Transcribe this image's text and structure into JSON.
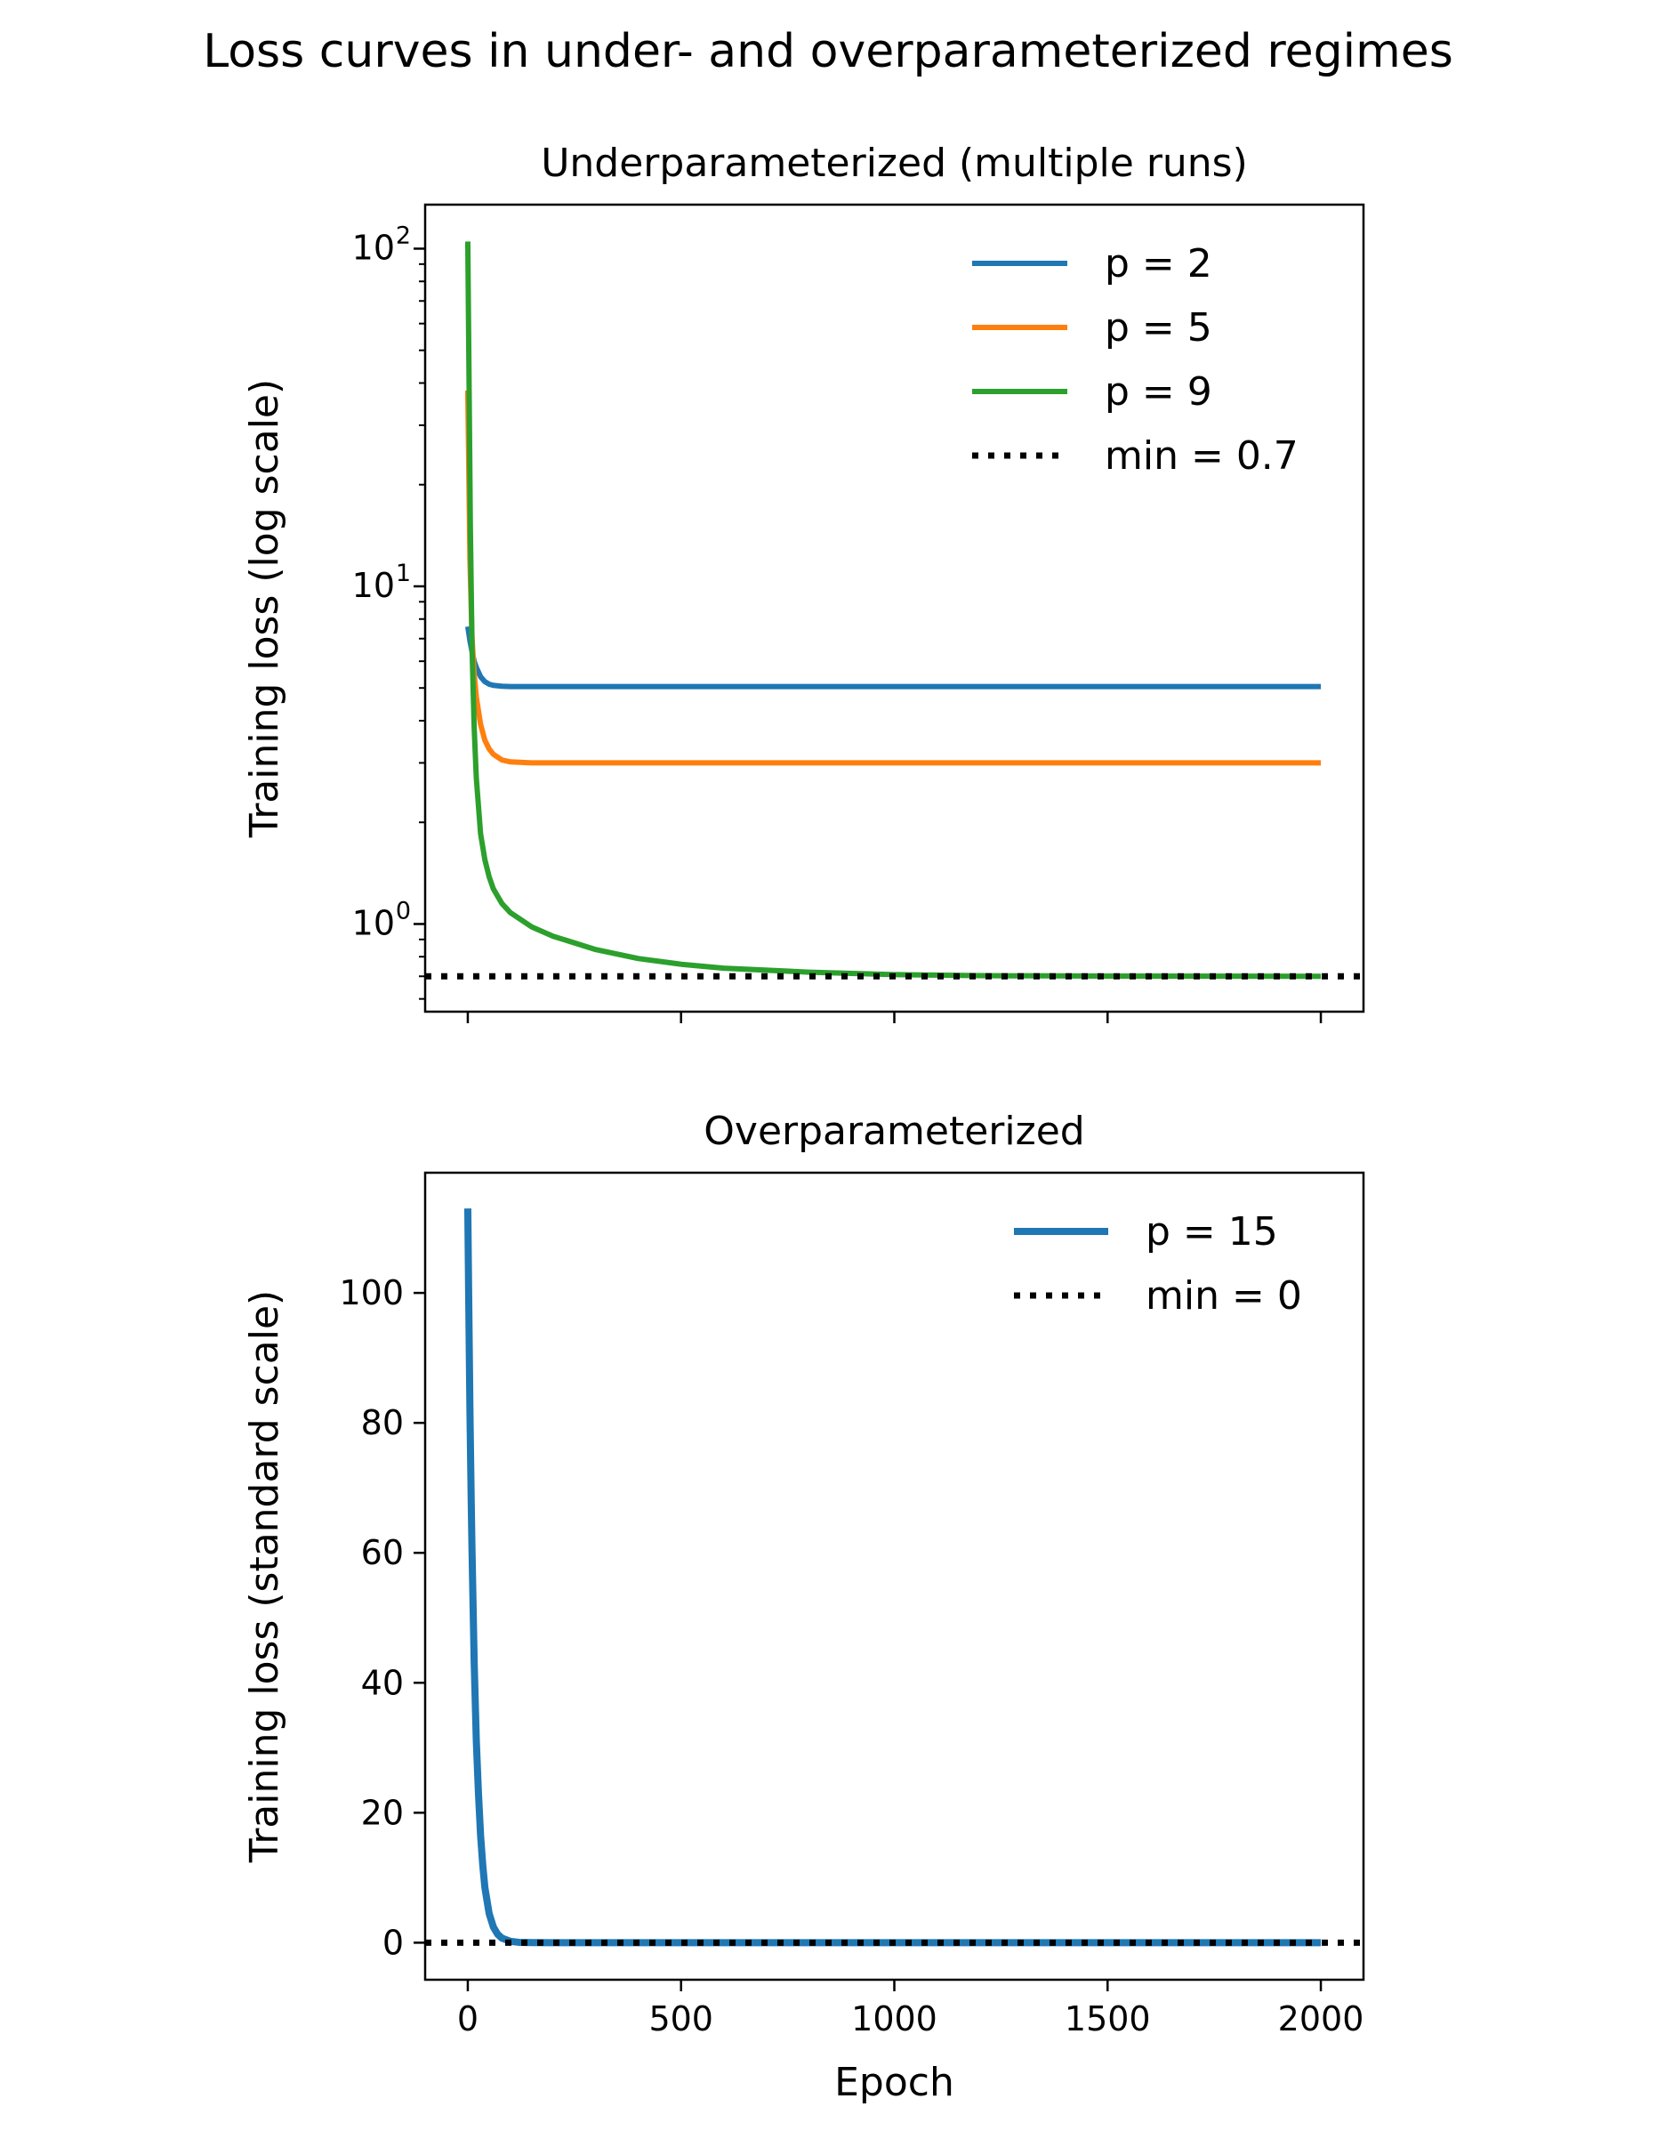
{
  "figure": {
    "suptitle": "Loss curves in under- and overparameterized regimes"
  },
  "colors": {
    "blue": "#1f77b4",
    "orange": "#ff7f0e",
    "green": "#2ca02c",
    "min_line": "#000000"
  },
  "chart_data": [
    {
      "type": "line",
      "title": "Underparameterized (multiple runs)",
      "xlabel": "",
      "ylabel": "Training loss (log scale)",
      "yscale": "log",
      "xlim": [
        -100,
        2100
      ],
      "ylim": [
        0.55,
        135
      ],
      "x_ticks": [
        0,
        500,
        1000,
        1500,
        2000
      ],
      "x_tick_labels_shown": false,
      "y_ticks": [
        {
          "value": 1,
          "base": "10",
          "exp": "0"
        },
        {
          "value": 10,
          "base": "10",
          "exp": "1"
        },
        {
          "value": 100,
          "base": "10",
          "exp": "2"
        }
      ],
      "legend_position": "top-right",
      "series": [
        {
          "name": "p = 2",
          "color": "blue",
          "x": [
            0,
            5,
            10,
            15,
            20,
            30,
            40,
            50,
            60,
            80,
            100,
            150,
            200,
            300,
            500,
            1000,
            1500,
            2000
          ],
          "y": [
            7.6,
            6.9,
            6.4,
            6.0,
            5.75,
            5.4,
            5.22,
            5.13,
            5.09,
            5.06,
            5.05,
            5.05,
            5.05,
            5.05,
            5.05,
            5.05,
            5.05,
            5.05
          ]
        },
        {
          "name": "p = 5",
          "color": "orange",
          "x": [
            0,
            5,
            10,
            15,
            20,
            30,
            40,
            50,
            60,
            80,
            100,
            150,
            200,
            300,
            500,
            1000,
            1500,
            2000
          ],
          "y": [
            38,
            12,
            7.0,
            5.5,
            4.7,
            3.9,
            3.5,
            3.3,
            3.18,
            3.06,
            3.02,
            3.0,
            3.0,
            3.0,
            3.0,
            3.0,
            3.0,
            3.0
          ]
        },
        {
          "name": "p = 9",
          "color": "green",
          "x": [
            0,
            3,
            6,
            10,
            15,
            20,
            30,
            40,
            50,
            60,
            80,
            100,
            150,
            200,
            300,
            400,
            500,
            600,
            800,
            1000,
            1200,
            1500,
            2000
          ],
          "y": [
            105,
            40,
            15,
            6.5,
            3.8,
            2.7,
            1.85,
            1.55,
            1.38,
            1.27,
            1.15,
            1.08,
            0.98,
            0.92,
            0.84,
            0.79,
            0.76,
            0.74,
            0.72,
            0.708,
            0.703,
            0.701,
            0.7
          ]
        }
      ],
      "reference_line": {
        "name": "min = 0.7",
        "y": 0.7,
        "style": "dotted",
        "color": "min_line"
      }
    },
    {
      "type": "line",
      "title": "Overparameterized",
      "xlabel": "Epoch",
      "ylabel": "Training loss (standard scale)",
      "yscale": "linear",
      "xlim": [
        -100,
        2100
      ],
      "ylim": [
        -5.7,
        118.5
      ],
      "x_ticks": [
        0,
        500,
        1000,
        1500,
        2000
      ],
      "x_tick_labels": [
        "0",
        "500",
        "1000",
        "1500",
        "2000"
      ],
      "y_ticks": [
        0,
        20,
        40,
        60,
        80,
        100
      ],
      "y_tick_labels": [
        "0",
        "20",
        "40",
        "60",
        "80",
        "100"
      ],
      "legend_position": "top-right",
      "series": [
        {
          "name": "p = 15",
          "color": "blue",
          "x": [
            0,
            2,
            5,
            8,
            10,
            15,
            20,
            25,
            30,
            35,
            40,
            50,
            60,
            70,
            80,
            100,
            120,
            150,
            200,
            500,
            1000,
            1500,
            2000
          ],
          "y": [
            113,
            100,
            82,
            68,
            60,
            43,
            31,
            23,
            16.5,
            12,
            8.5,
            4.5,
            2.4,
            1.3,
            0.7,
            0.2,
            0.06,
            0.01,
            0,
            0,
            0,
            0,
            0
          ]
        }
      ],
      "reference_line": {
        "name": "min = 0",
        "y": 0,
        "style": "dotted",
        "color": "min_line"
      }
    }
  ]
}
